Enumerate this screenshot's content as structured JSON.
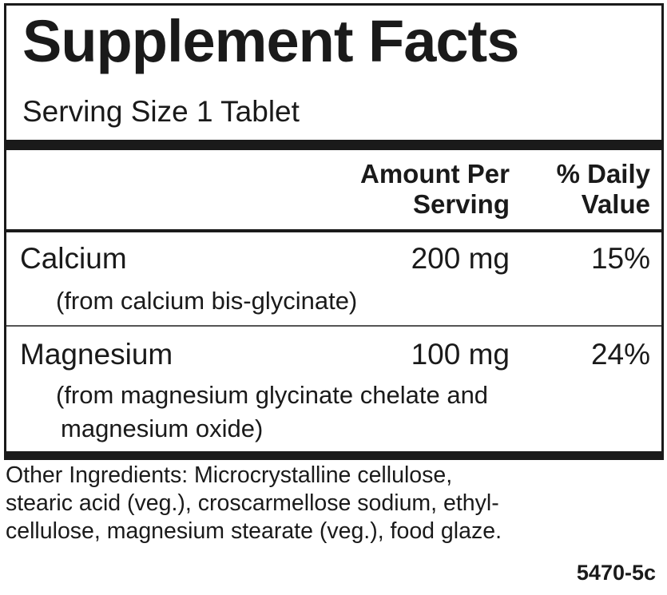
{
  "title": "Supplement Facts",
  "serving_size": "Serving Size 1 Tablet",
  "headers": {
    "amount_line1": "Amount Per",
    "amount_line2": "Serving",
    "dv_line1": "% Daily",
    "dv_line2": "Value"
  },
  "nutrients": [
    {
      "name": "Calcium",
      "amount": "200 mg",
      "dv": "15%",
      "source_line1": "(from calcium bis-glycinate)"
    },
    {
      "name": "Magnesium",
      "amount": "100 mg",
      "dv": "24%",
      "source_line1": "(from magnesium glycinate chelate and",
      "source_line2": "magnesium oxide)"
    }
  ],
  "other_ingredients": {
    "line1": "Other Ingredients: Microcrystalline cellulose,",
    "line2": "stearic acid (veg.), croscarmellose sodium, ethyl-",
    "line3": "cellulose, magnesium stearate (veg.), food glaze."
  },
  "product_code": "5470-5c"
}
